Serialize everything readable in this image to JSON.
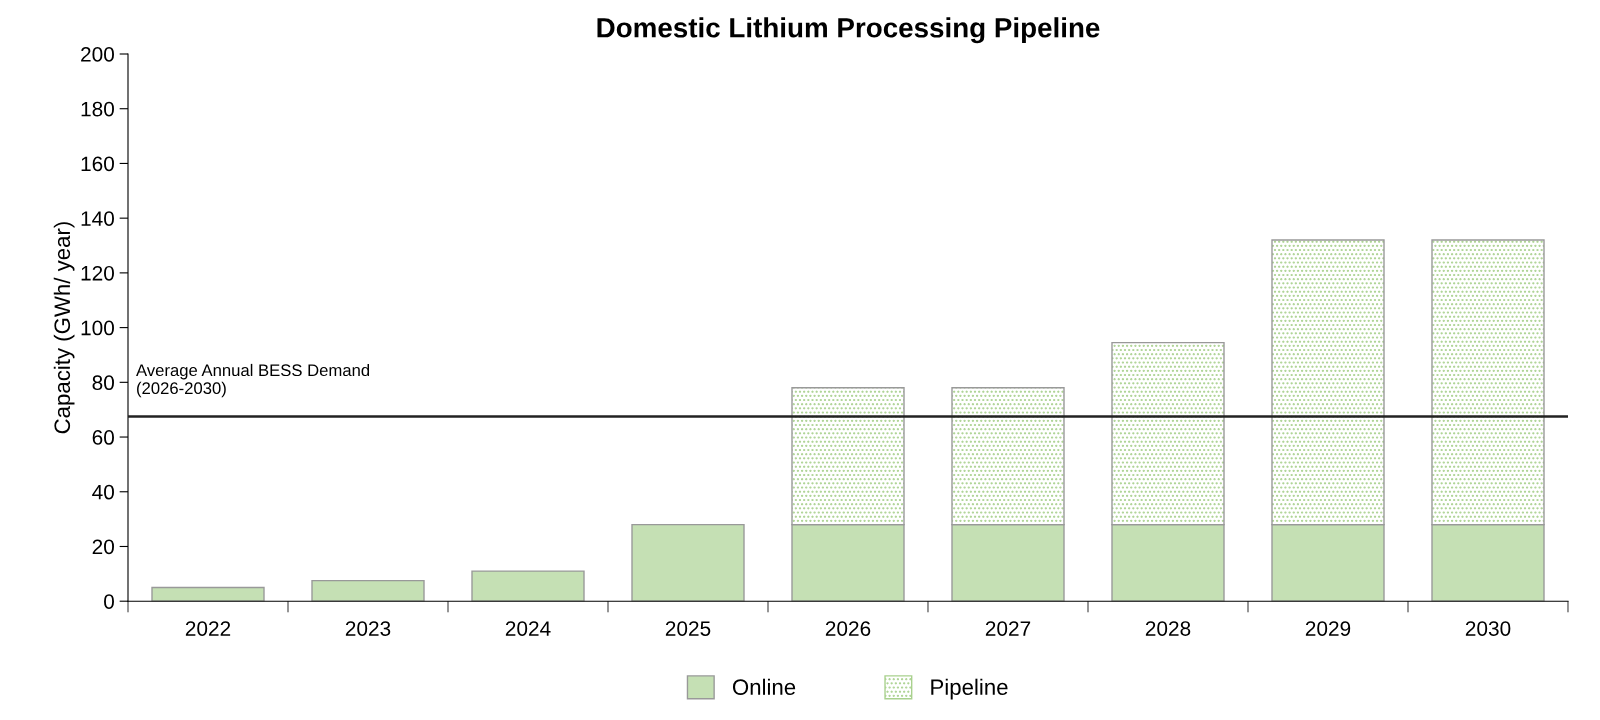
{
  "chart_data": {
    "type": "bar",
    "title": "Domestic Lithium Processing Pipeline",
    "ylabel": "Capacity (GWh/ year)",
    "categories": [
      "2022",
      "2023",
      "2024",
      "2025",
      "2026",
      "2027",
      "2028",
      "2029",
      "2030"
    ],
    "stacked": true,
    "series": [
      {
        "name": "Online",
        "color": "#c5e0b4",
        "values": [
          5,
          7.5,
          11,
          28,
          28,
          28,
          28,
          28,
          28
        ]
      },
      {
        "name": "Pipeline",
        "color": "#a9d18e",
        "values": [
          null,
          null,
          null,
          null,
          50,
          50,
          66.5,
          104,
          104
        ]
      }
    ],
    "ylim": [
      0,
      200
    ],
    "yticks": [
      0,
      20,
      40,
      60,
      80,
      100,
      120,
      140,
      160,
      180,
      200
    ],
    "ref_lines": [
      {
        "axis": "y",
        "value": 67.5,
        "label": "Average Annual BESS Demand\n(2026-2030)",
        "color": "#222222"
      }
    ],
    "grid": false,
    "legend": "bottom"
  }
}
